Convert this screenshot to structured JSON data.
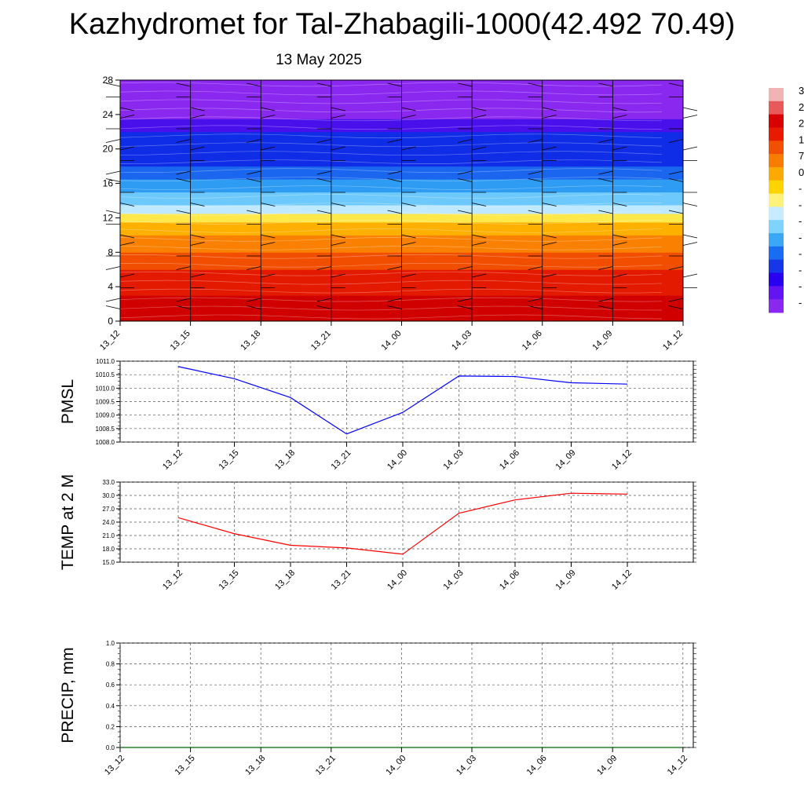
{
  "title": "Kazhydromet for Tal-Zhabagili-1000(42.492 70.49)",
  "date": "13 May 2025",
  "colorbar": {
    "labels": [
      "3",
      "2",
      "2",
      "1",
      "7",
      "0",
      "-",
      "-",
      "-",
      "-",
      "-",
      "-",
      "-",
      "-"
    ],
    "colors": [
      "#f2b3b3",
      "#e85a5a",
      "#d90000",
      "#e81a00",
      "#f05000",
      "#f77d00",
      "#fdaa00",
      "#ffd400",
      "#fff27a",
      "#c8ecff",
      "#7fd3ff",
      "#3aa8f7",
      "#1a6cf0",
      "#1636e8",
      "#2a00f0",
      "#6414f0",
      "#8a28f0"
    ]
  },
  "chart_data": [
    {
      "type": "heatmap",
      "y_ticks": [
        "28",
        "24",
        "20",
        "16",
        "12",
        "8",
        "4",
        "0"
      ],
      "ylim": [
        0,
        28
      ],
      "x_ticks": [
        "13_12",
        "13_15",
        "13_18",
        "13_21",
        "14_00",
        "14_03",
        "14_06",
        "14_09",
        "14_12"
      ],
      "level_bands": [
        {
          "y_from": 0,
          "y_to": 3,
          "color": "#d00000"
        },
        {
          "y_from": 3,
          "y_to": 6,
          "color": "#e41a00"
        },
        {
          "y_from": 6,
          "y_to": 8,
          "color": "#f24e00"
        },
        {
          "y_from": 8,
          "y_to": 10,
          "color": "#f98000"
        },
        {
          "y_from": 10,
          "y_to": 11.5,
          "color": "#fdb000"
        },
        {
          "y_from": 11.5,
          "y_to": 12.5,
          "color": "#ffe84a"
        },
        {
          "y_from": 12.5,
          "y_to": 13.5,
          "color": "#bfe9ff"
        },
        {
          "y_from": 13.5,
          "y_to": 15,
          "color": "#6dc9fb"
        },
        {
          "y_from": 15,
          "y_to": 16.5,
          "color": "#2f9cf4"
        },
        {
          "y_from": 16.5,
          "y_to": 18,
          "color": "#1a66ee"
        },
        {
          "y_from": 18,
          "y_to": 22,
          "color": "#0f2de6"
        },
        {
          "y_from": 22,
          "y_to": 23.5,
          "color": "#4a10ec"
        },
        {
          "y_from": 23.5,
          "y_to": 28,
          "color": "#8a28f0"
        }
      ]
    },
    {
      "type": "line",
      "ylabel": "PMSL",
      "ylim": [
        1008.0,
        1011.0
      ],
      "y_ticks": [
        "1011.0",
        "1010.5",
        "1010.0",
        "1009.5",
        "1009.0",
        "1008.5",
        "1008.0"
      ],
      "categories": [
        "13_12",
        "13_15",
        "13_18",
        "13_21",
        "14_00",
        "14_03",
        "14_06",
        "14_09",
        "14_12"
      ],
      "values": [
        1010.8,
        1010.35,
        1009.65,
        1008.3,
        1009.1,
        1010.45,
        1010.43,
        1010.2,
        1010.15
      ],
      "color": "#0000ff"
    },
    {
      "type": "line",
      "ylabel": "TEMP at 2 M",
      "ylim": [
        15.0,
        33.0
      ],
      "y_ticks": [
        "33.0",
        "30.0",
        "27.0",
        "24.0",
        "21.0",
        "18.0",
        "15.0"
      ],
      "categories": [
        "13_12",
        "13_15",
        "13_18",
        "13_21",
        "14_00",
        "14_03",
        "14_06",
        "14_09",
        "14_12"
      ],
      "values": [
        25.0,
        21.4,
        18.8,
        18.2,
        16.8,
        26.0,
        29.0,
        30.5,
        30.3
      ],
      "color": "#ff0000"
    },
    {
      "type": "line",
      "ylabel": "PRECIP, mm",
      "ylim": [
        0.0,
        1.0
      ],
      "y_ticks": [
        "1.0",
        "0.8",
        "0.6",
        "0.4",
        "0.2",
        "0.0"
      ],
      "categories": [
        "13_12",
        "13_15",
        "13_18",
        "13_21",
        "14_00",
        "14_03",
        "14_06",
        "14_09",
        "14_12"
      ],
      "values": [
        0,
        0,
        0,
        0,
        0,
        0,
        0,
        0,
        0
      ],
      "color": "#006400"
    }
  ]
}
